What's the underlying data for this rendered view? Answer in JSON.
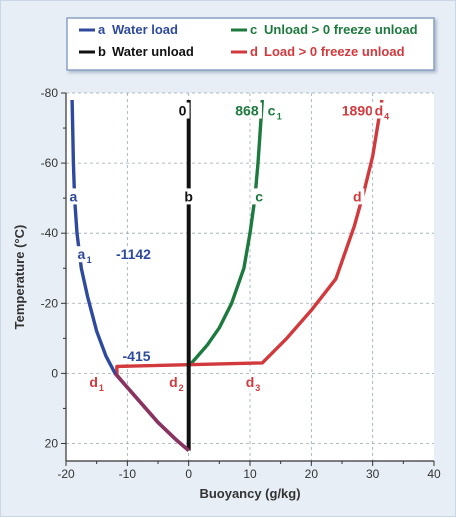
{
  "colors": {
    "a": "#2e4a9e",
    "b": "#111111",
    "c": "#1d7a3e",
    "d": "#d2393c",
    "overlap": "#8a3360"
  },
  "chart_data": {
    "type": "line",
    "xlabel": "Buoyancy (g/kg)",
    "ylabel": "Temperature (°C)",
    "xlim": [
      -20,
      40
    ],
    "ylim": [
      25,
      -80
    ],
    "x_ticks": [
      "-20",
      "-10",
      "0",
      "10",
      "20",
      "30",
      "40"
    ],
    "y_ticks": [
      "-80",
      "-60",
      "-40",
      "-20",
      "0",
      "20"
    ],
    "grid": true,
    "legend_position": "top",
    "legend": [
      {
        "key": "a",
        "letter": "a",
        "label": "Water load"
      },
      {
        "key": "b",
        "letter": "b",
        "label": "Water unload"
      },
      {
        "key": "c",
        "letter": "c",
        "label": "Unload > 0 freeze unload"
      },
      {
        "key": "d",
        "letter": "d",
        "label": "Load > 0 freeze unload"
      }
    ],
    "series": [
      {
        "key": "a",
        "points": [
          [
            0,
            22
          ],
          [
            -2,
            19
          ],
          [
            -5,
            14
          ],
          [
            -8,
            8
          ],
          [
            -10,
            4
          ],
          [
            -12,
            0
          ],
          [
            -13.5,
            -5
          ],
          [
            -15,
            -12
          ],
          [
            -16.5,
            -22
          ],
          [
            -17.5,
            -30
          ],
          [
            -18.2,
            -40
          ],
          [
            -18.6,
            -50
          ],
          [
            -18.8,
            -60
          ],
          [
            -18.9,
            -70
          ],
          [
            -19,
            -78
          ]
        ]
      },
      {
        "key": "b",
        "points": [
          [
            0,
            22
          ],
          [
            0,
            -78
          ]
        ]
      },
      {
        "key": "c",
        "points": [
          [
            0,
            22
          ],
          [
            0,
            -2
          ],
          [
            1,
            -4
          ],
          [
            3,
            -8
          ],
          [
            5,
            -13
          ],
          [
            7,
            -20
          ],
          [
            9,
            -30
          ],
          [
            10,
            -40
          ],
          [
            10.8,
            -50
          ],
          [
            11.3,
            -60
          ],
          [
            11.7,
            -70
          ],
          [
            12,
            -78
          ]
        ]
      },
      {
        "key": "d",
        "points": [
          [
            0,
            22
          ],
          [
            -2,
            19
          ],
          [
            -5,
            14
          ],
          [
            -8,
            8
          ],
          [
            -10,
            4
          ],
          [
            -11.7,
            0.5
          ],
          [
            -11.7,
            -2
          ],
          [
            12,
            -3
          ],
          [
            16,
            -10
          ],
          [
            20,
            -18
          ],
          [
            24,
            -27
          ],
          [
            27,
            -42
          ],
          [
            28.6,
            -52
          ],
          [
            30,
            -62
          ],
          [
            31.5,
            -78
          ]
        ]
      }
    ],
    "labels": [
      {
        "text": "0",
        "sub": "",
        "x": -1,
        "y": -75,
        "key": "b"
      },
      {
        "text": "868",
        "sub": "",
        "x": 9.5,
        "y": -75,
        "key": "c"
      },
      {
        "text": "c",
        "sub": "1",
        "x": 14,
        "y": -75,
        "key": "c"
      },
      {
        "text": "1890",
        "sub": "",
        "x": 27.5,
        "y": -75,
        "key": "d"
      },
      {
        "text": "d",
        "sub": "4",
        "x": 31.5,
        "y": -75,
        "key": "d"
      },
      {
        "text": "a",
        "sub": "",
        "x": -18.8,
        "y": -50.5,
        "key": "a"
      },
      {
        "text": "b",
        "sub": "",
        "x": 0,
        "y": -50.5,
        "key": "b"
      },
      {
        "text": "c",
        "sub": "",
        "x": 11.5,
        "y": -50.5,
        "key": "c"
      },
      {
        "text": "d",
        "sub": "",
        "x": 27.5,
        "y": -50.5,
        "key": "d"
      },
      {
        "text": "a",
        "sub": "1",
        "x": -17,
        "y": -34,
        "key": "a"
      },
      {
        "text": "-1142",
        "sub": "",
        "x": -9,
        "y": -34,
        "key": "a"
      },
      {
        "text": "-415",
        "sub": "",
        "x": -8.5,
        "y": -5,
        "key": "a"
      },
      {
        "text": "d",
        "sub": "1",
        "x": -15,
        "y": 2.5,
        "key": "d"
      },
      {
        "text": "d",
        "sub": "2",
        "x": -2,
        "y": 2.5,
        "key": "d"
      },
      {
        "text": "d",
        "sub": "3",
        "x": 10.5,
        "y": 2.5,
        "key": "d"
      }
    ]
  }
}
